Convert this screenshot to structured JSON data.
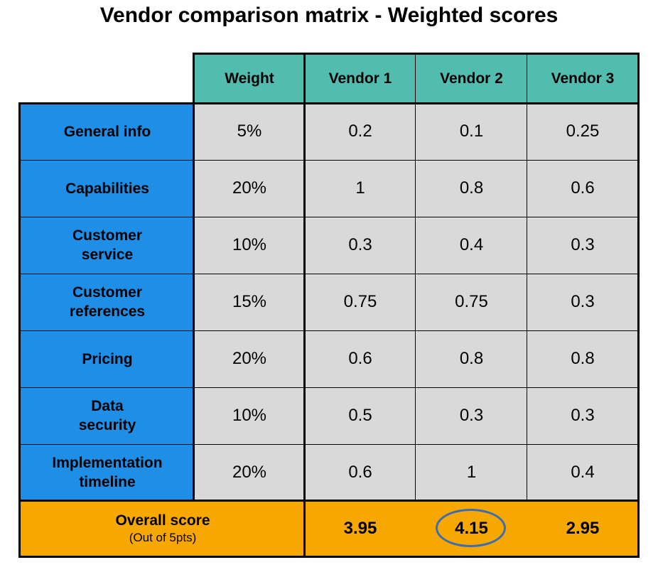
{
  "title": "Vendor comparison matrix - Weighted scores",
  "header": {
    "weight": "Weight",
    "vendors": [
      "Vendor 1",
      "Vendor 2",
      "Vendor 3"
    ]
  },
  "rows": [
    {
      "label": "General info",
      "weight": "5%",
      "scores": [
        "0.2",
        "0.1",
        "0.25"
      ]
    },
    {
      "label": "Capabilities",
      "weight": "20%",
      "scores": [
        "1",
        "0.8",
        "0.6"
      ]
    },
    {
      "label": "Customer\nservice",
      "weight": "10%",
      "scores": [
        "0.3",
        "0.4",
        "0.3"
      ]
    },
    {
      "label": "Customer\nreferences",
      "weight": "15%",
      "scores": [
        "0.75",
        "0.75",
        "0.3"
      ]
    },
    {
      "label": "Pricing",
      "weight": "20%",
      "scores": [
        "0.6",
        "0.8",
        "0.8"
      ]
    },
    {
      "label": "Data\nsecurity",
      "weight": "10%",
      "scores": [
        "0.5",
        "0.3",
        "0.3"
      ]
    },
    {
      "label": "Implementation\ntimeline",
      "weight": "20%",
      "scores": [
        "0.6",
        "1",
        "0.4"
      ]
    }
  ],
  "overall": {
    "label": "Overall score",
    "sublabel": "(Out of 5pts)",
    "scores": [
      "3.95",
      "4.15",
      "2.95"
    ],
    "highlighted_vendor": "Vendor 2"
  },
  "colors": {
    "header": "#52bcaf",
    "row_label": "#1e8ee6",
    "cell": "#d9d9d9",
    "overall": "#f6a800",
    "highlight_ring": "#3d6db0"
  }
}
